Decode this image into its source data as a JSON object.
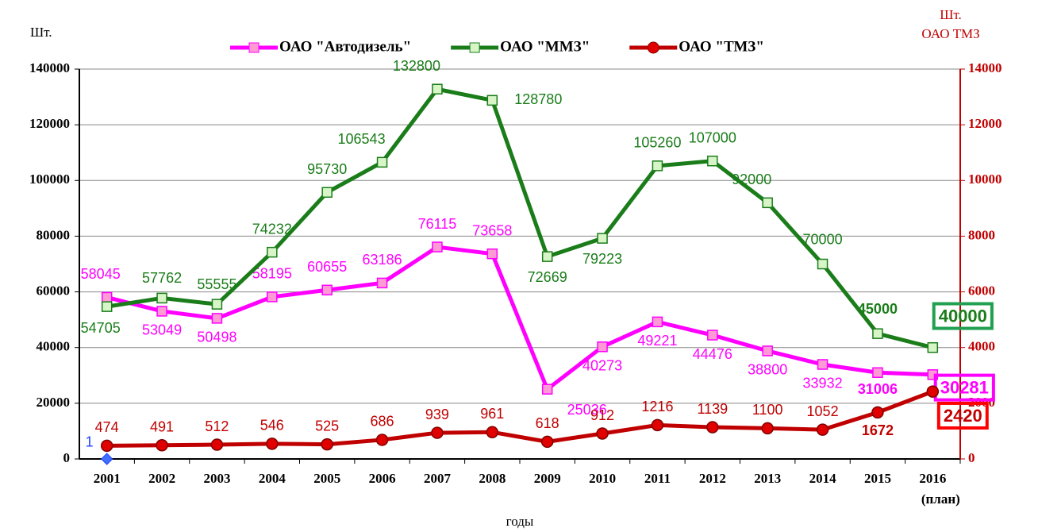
{
  "chart_data": {
    "type": "line",
    "y_label": "Шт.",
    "y2_label": "Шт.",
    "y2_sublabel": "ОАО ТМЗ",
    "x_label": "годы",
    "categories": [
      "2001",
      "2002",
      "2003",
      "2004",
      "2005",
      "2006",
      "2007",
      "2008",
      "2009",
      "2010",
      "2011",
      "2012",
      "2013",
      "2014",
      "2015",
      "2016\n(план)"
    ],
    "series": [
      {
        "name": "ОАО \"Автодизель\"",
        "color": "#ff00ff",
        "values": [
          58045,
          53049,
          50498,
          58195,
          60655,
          63186,
          76115,
          73658,
          25036,
          40273,
          49221,
          44476,
          38800,
          33932,
          31006,
          30281
        ]
      },
      {
        "name": "ОАО \"ММЗ\"",
        "color": "#1a7d1a",
        "values": [
          54705,
          57762,
          55555,
          74232,
          95730,
          106543,
          132800,
          128780,
          72669,
          79223,
          105260,
          107000,
          92000,
          70000,
          45000,
          40000
        ]
      },
      {
        "name": "ОАО \"ТМЗ\"",
        "color": "#c00000",
        "axis": "y2",
        "values": [
          474,
          491,
          512,
          546,
          525,
          686,
          939,
          961,
          618,
          912,
          1216,
          1139,
          1100,
          1052,
          1672,
          2420
        ]
      },
      {
        "color": "#2040ff",
        "values": [
          1,
          null,
          null,
          null,
          null,
          null,
          null,
          null,
          null,
          null,
          null,
          null,
          null,
          null,
          null,
          null
        ]
      }
    ],
    "ylim": [
      0,
      140000
    ],
    "yticks": [
      0,
      20000,
      40000,
      60000,
      80000,
      100000,
      120000,
      140000
    ],
    "y2lim": [
      0,
      14000
    ],
    "y2ticks": [
      0,
      2000,
      4000,
      6000,
      8000,
      10000,
      12000,
      14000
    ],
    "grid": true
  }
}
